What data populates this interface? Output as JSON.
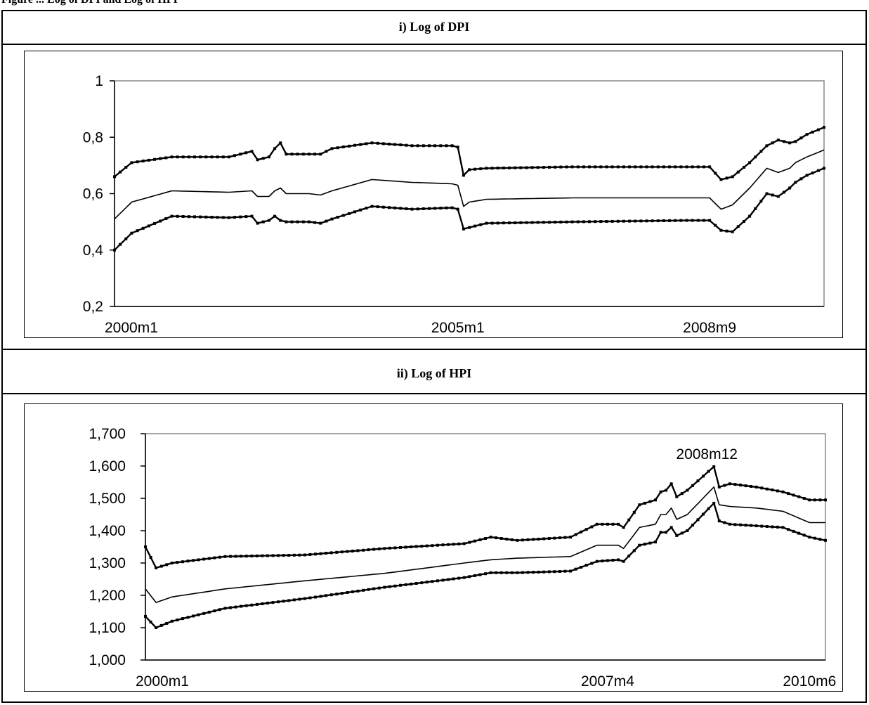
{
  "header_fragment": "Figure ... Log of DPI and Log of HPI",
  "panels": [
    {
      "title": "i) Log of DPI"
    },
    {
      "title": "ii) Log of HPI"
    }
  ],
  "chart_data": [
    {
      "type": "line",
      "title": "i) Log of DPI",
      "xlabel": "",
      "ylabel": "",
      "ylim": [
        0.2,
        1.0
      ],
      "y_ticks": [
        "0,2",
        "0,4",
        "0,6",
        "0,8",
        "1"
      ],
      "x_ticks": [
        "2000m1",
        "2005m1",
        "2008m9"
      ],
      "x_tick_index": [
        0,
        60,
        104
      ],
      "n_points": 125,
      "grid": false,
      "legend": "none",
      "series": [
        {
          "style": "dotted-upper",
          "anchors": [
            [
              0,
              0.66
            ],
            [
              3,
              0.71
            ],
            [
              10,
              0.73
            ],
            [
              20,
              0.73
            ],
            [
              24,
              0.75
            ],
            [
              25,
              0.72
            ],
            [
              27,
              0.73
            ],
            [
              28,
              0.76
            ],
            [
              29,
              0.78
            ],
            [
              30,
              0.74
            ],
            [
              34,
              0.74
            ],
            [
              36,
              0.74
            ],
            [
              38,
              0.76
            ],
            [
              45,
              0.78
            ],
            [
              52,
              0.77
            ],
            [
              59,
              0.77
            ],
            [
              60,
              0.765
            ],
            [
              61,
              0.665
            ],
            [
              62,
              0.685
            ],
            [
              65,
              0.69
            ],
            [
              80,
              0.695
            ],
            [
              100,
              0.695
            ],
            [
              104,
              0.695
            ],
            [
              106,
              0.65
            ],
            [
              108,
              0.66
            ],
            [
              111,
              0.71
            ],
            [
              114,
              0.77
            ],
            [
              116,
              0.79
            ],
            [
              118,
              0.78
            ],
            [
              119,
              0.785
            ],
            [
              121,
              0.81
            ],
            [
              124,
              0.835
            ]
          ]
        },
        {
          "style": "solid-middle",
          "anchors": [
            [
              0,
              0.51
            ],
            [
              3,
              0.57
            ],
            [
              10,
              0.61
            ],
            [
              20,
              0.605
            ],
            [
              24,
              0.61
            ],
            [
              25,
              0.59
            ],
            [
              27,
              0.59
            ],
            [
              28,
              0.61
            ],
            [
              29,
              0.62
            ],
            [
              30,
              0.6
            ],
            [
              34,
              0.6
            ],
            [
              36,
              0.595
            ],
            [
              38,
              0.61
            ],
            [
              45,
              0.65
            ],
            [
              52,
              0.64
            ],
            [
              59,
              0.635
            ],
            [
              60,
              0.63
            ],
            [
              61,
              0.555
            ],
            [
              62,
              0.57
            ],
            [
              65,
              0.58
            ],
            [
              80,
              0.585
            ],
            [
              100,
              0.585
            ],
            [
              104,
              0.585
            ],
            [
              106,
              0.545
            ],
            [
              108,
              0.56
            ],
            [
              111,
              0.62
            ],
            [
              114,
              0.69
            ],
            [
              116,
              0.675
            ],
            [
              118,
              0.69
            ],
            [
              119,
              0.71
            ],
            [
              121,
              0.73
            ],
            [
              124,
              0.755
            ]
          ]
        },
        {
          "style": "dotted-lower",
          "anchors": [
            [
              0,
              0.4
            ],
            [
              3,
              0.46
            ],
            [
              10,
              0.52
            ],
            [
              20,
              0.515
            ],
            [
              24,
              0.52
            ],
            [
              25,
              0.495
            ],
            [
              27,
              0.505
            ],
            [
              28,
              0.52
            ],
            [
              29,
              0.505
            ],
            [
              30,
              0.5
            ],
            [
              34,
              0.5
            ],
            [
              36,
              0.495
            ],
            [
              38,
              0.51
            ],
            [
              45,
              0.555
            ],
            [
              52,
              0.545
            ],
            [
              59,
              0.55
            ],
            [
              60,
              0.545
            ],
            [
              61,
              0.475
            ],
            [
              62,
              0.48
            ],
            [
              65,
              0.495
            ],
            [
              80,
              0.5
            ],
            [
              100,
              0.505
            ],
            [
              104,
              0.505
            ],
            [
              106,
              0.47
            ],
            [
              108,
              0.465
            ],
            [
              111,
              0.52
            ],
            [
              114,
              0.6
            ],
            [
              116,
              0.59
            ],
            [
              118,
              0.62
            ],
            [
              119,
              0.64
            ],
            [
              121,
              0.665
            ],
            [
              124,
              0.69
            ]
          ]
        }
      ]
    },
    {
      "type": "line",
      "title": "ii) Log of HPI",
      "xlabel": "",
      "ylabel": "",
      "ylim": [
        1.0,
        1.7
      ],
      "y_ticks": [
        "1,000",
        "1,100",
        "1,200",
        "1,300",
        "1,400",
        "1,500",
        "1,600",
        "1,700"
      ],
      "x_ticks": [
        "2000m1",
        "2007m4",
        "2010m6"
      ],
      "x_tick_index": [
        0,
        87,
        125
      ],
      "n_points": 129,
      "grid": false,
      "legend": "none",
      "annotation": {
        "text": "2008m12",
        "index": 107
      },
      "series": [
        {
          "style": "dotted-upper",
          "anchors": [
            [
              0,
              1.35
            ],
            [
              2,
              1.285
            ],
            [
              5,
              1.3
            ],
            [
              15,
              1.32
            ],
            [
              30,
              1.325
            ],
            [
              45,
              1.345
            ],
            [
              60,
              1.36
            ],
            [
              65,
              1.38
            ],
            [
              70,
              1.37
            ],
            [
              80,
              1.38
            ],
            [
              85,
              1.42
            ],
            [
              89,
              1.42
            ],
            [
              90,
              1.41
            ],
            [
              93,
              1.48
            ],
            [
              96,
              1.495
            ],
            [
              97,
              1.52
            ],
            [
              98,
              1.525
            ],
            [
              99,
              1.545
            ],
            [
              100,
              1.505
            ],
            [
              102,
              1.525
            ],
            [
              107,
              1.598
            ],
            [
              108,
              1.535
            ],
            [
              110,
              1.545
            ],
            [
              115,
              1.535
            ],
            [
              120,
              1.52
            ],
            [
              125,
              1.495
            ],
            [
              128,
              1.495
            ]
          ]
        },
        {
          "style": "solid-middle",
          "anchors": [
            [
              0,
              1.22
            ],
            [
              2,
              1.178
            ],
            [
              5,
              1.195
            ],
            [
              15,
              1.22
            ],
            [
              30,
              1.245
            ],
            [
              45,
              1.268
            ],
            [
              60,
              1.3
            ],
            [
              65,
              1.31
            ],
            [
              70,
              1.315
            ],
            [
              80,
              1.32
            ],
            [
              85,
              1.355
            ],
            [
              89,
              1.355
            ],
            [
              90,
              1.345
            ],
            [
              93,
              1.41
            ],
            [
              96,
              1.42
            ],
            [
              97,
              1.45
            ],
            [
              98,
              1.45
            ],
            [
              99,
              1.47
            ],
            [
              100,
              1.435
            ],
            [
              102,
              1.45
            ],
            [
              107,
              1.535
            ],
            [
              108,
              1.48
            ],
            [
              110,
              1.475
            ],
            [
              115,
              1.47
            ],
            [
              120,
              1.46
            ],
            [
              125,
              1.425
            ],
            [
              128,
              1.425
            ]
          ]
        },
        {
          "style": "dotted-lower",
          "anchors": [
            [
              0,
              1.135
            ],
            [
              2,
              1.1
            ],
            [
              5,
              1.12
            ],
            [
              15,
              1.16
            ],
            [
              30,
              1.19
            ],
            [
              45,
              1.225
            ],
            [
              60,
              1.255
            ],
            [
              65,
              1.27
            ],
            [
              70,
              1.27
            ],
            [
              80,
              1.275
            ],
            [
              85,
              1.305
            ],
            [
              89,
              1.31
            ],
            [
              90,
              1.305
            ],
            [
              93,
              1.355
            ],
            [
              96,
              1.365
            ],
            [
              97,
              1.395
            ],
            [
              98,
              1.395
            ],
            [
              99,
              1.41
            ],
            [
              100,
              1.385
            ],
            [
              102,
              1.4
            ],
            [
              107,
              1.485
            ],
            [
              108,
              1.43
            ],
            [
              110,
              1.42
            ],
            [
              115,
              1.415
            ],
            [
              120,
              1.41
            ],
            [
              125,
              1.38
            ],
            [
              128,
              1.37
            ]
          ]
        }
      ]
    }
  ]
}
